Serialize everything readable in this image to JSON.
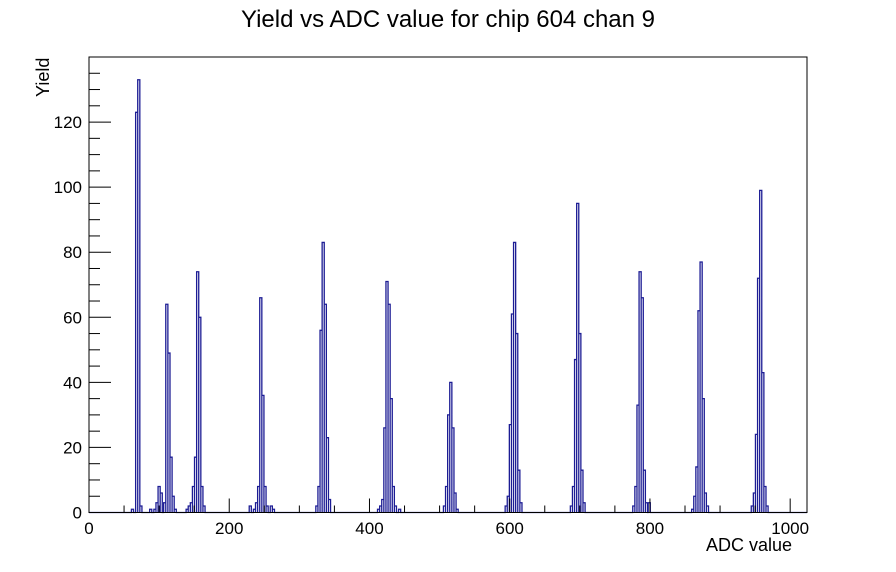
{
  "title": "Yield vs ADC value for chip 604 chan 9",
  "x_axis": {
    "label": "ADC value",
    "min": 0,
    "max": 1024,
    "major_ticks": [
      0,
      200,
      400,
      600,
      800,
      1000
    ],
    "minor_tick_step": 50
  },
  "y_axis": {
    "label": "Yield",
    "min": 0,
    "max": 140,
    "major_ticks": [
      0,
      20,
      40,
      60,
      80,
      100,
      120
    ],
    "minor_tick_step": 5
  },
  "colors": {
    "background": "#ffffff",
    "axis": "#000000",
    "text": "#000000",
    "hist_line": "#1c1c94"
  },
  "chart_data": {
    "type": "bar",
    "title": "Yield vs ADC value for chip 604 chan 9",
    "xlabel": "ADC value",
    "ylabel": "Yield",
    "xlim": [
      0,
      1024
    ],
    "ylim": [
      0,
      140
    ],
    "grid": false,
    "legend": false,
    "bin_width": 3,
    "peaks": [
      {
        "adc": 71,
        "yield": 133
      },
      {
        "adc": 111,
        "yield": 64
      },
      {
        "adc": 155,
        "yield": 74
      },
      {
        "adc": 245,
        "yield": 66
      },
      {
        "adc": 334,
        "yield": 83
      },
      {
        "adc": 425,
        "yield": 71
      },
      {
        "adc": 516,
        "yield": 40
      },
      {
        "adc": 607,
        "yield": 83
      },
      {
        "adc": 697,
        "yield": 95
      },
      {
        "adc": 786,
        "yield": 74
      },
      {
        "adc": 873,
        "yield": 77
      },
      {
        "adc": 958,
        "yield": 99
      }
    ],
    "bins": [
      [
        62,
        1
      ],
      [
        68,
        123
      ],
      [
        71,
        133
      ],
      [
        74,
        2
      ],
      [
        88,
        1
      ],
      [
        94,
        1
      ],
      [
        97,
        3
      ],
      [
        100,
        8
      ],
      [
        103,
        6
      ],
      [
        108,
        3
      ],
      [
        111,
        64
      ],
      [
        114,
        49
      ],
      [
        117,
        17
      ],
      [
        120,
        5
      ],
      [
        123,
        1
      ],
      [
        140,
        1
      ],
      [
        143,
        2
      ],
      [
        146,
        3
      ],
      [
        149,
        8
      ],
      [
        152,
        17
      ],
      [
        155,
        74
      ],
      [
        158,
        60
      ],
      [
        161,
        8
      ],
      [
        164,
        2
      ],
      [
        230,
        2
      ],
      [
        236,
        1
      ],
      [
        239,
        3
      ],
      [
        242,
        8
      ],
      [
        245,
        66
      ],
      [
        248,
        36
      ],
      [
        251,
        8
      ],
      [
        254,
        2
      ],
      [
        260,
        2
      ],
      [
        263,
        1
      ],
      [
        325,
        2
      ],
      [
        328,
        8
      ],
      [
        331,
        56
      ],
      [
        334,
        83
      ],
      [
        337,
        64
      ],
      [
        340,
        23
      ],
      [
        343,
        4
      ],
      [
        413,
        1
      ],
      [
        416,
        2
      ],
      [
        419,
        4
      ],
      [
        422,
        26
      ],
      [
        425,
        71
      ],
      [
        428,
        64
      ],
      [
        431,
        35
      ],
      [
        434,
        8
      ],
      [
        437,
        2
      ],
      [
        443,
        1
      ],
      [
        507,
        2
      ],
      [
        510,
        8
      ],
      [
        513,
        30
      ],
      [
        516,
        40
      ],
      [
        519,
        26
      ],
      [
        522,
        6
      ],
      [
        525,
        1
      ],
      [
        595,
        2
      ],
      [
        598,
        5
      ],
      [
        601,
        27
      ],
      [
        604,
        61
      ],
      [
        607,
        83
      ],
      [
        610,
        55
      ],
      [
        613,
        13
      ],
      [
        616,
        3
      ],
      [
        688,
        2
      ],
      [
        691,
        8
      ],
      [
        694,
        47
      ],
      [
        697,
        95
      ],
      [
        700,
        55
      ],
      [
        703,
        13
      ],
      [
        706,
        3
      ],
      [
        777,
        2
      ],
      [
        780,
        8
      ],
      [
        783,
        33
      ],
      [
        786,
        74
      ],
      [
        789,
        66
      ],
      [
        792,
        13
      ],
      [
        795,
        3
      ],
      [
        799,
        3
      ],
      [
        861,
        1
      ],
      [
        864,
        5
      ],
      [
        867,
        14
      ],
      [
        870,
        62
      ],
      [
        873,
        77
      ],
      [
        876,
        35
      ],
      [
        879,
        6
      ],
      [
        882,
        2
      ],
      [
        946,
        2
      ],
      [
        949,
        6
      ],
      [
        952,
        24
      ],
      [
        955,
        72
      ],
      [
        958,
        99
      ],
      [
        961,
        43
      ],
      [
        964,
        8
      ],
      [
        967,
        2
      ]
    ]
  }
}
